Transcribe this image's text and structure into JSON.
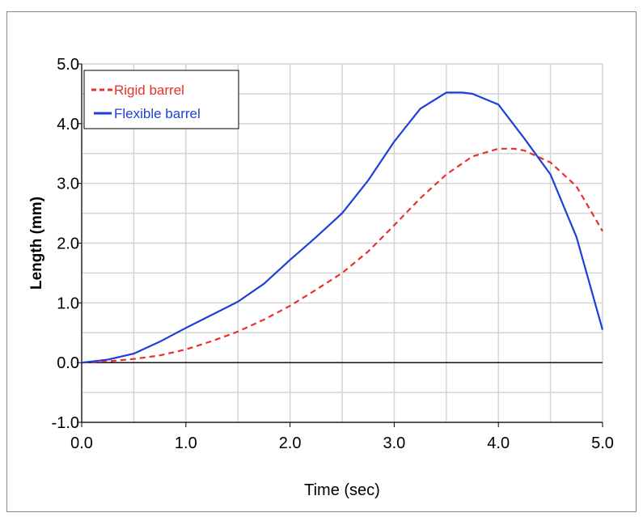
{
  "chart_data": {
    "type": "line",
    "title": "",
    "xlabel": "Time (sec)",
    "ylabel": "Length (mm)",
    "xlim": [
      0.0,
      5.0
    ],
    "ylim": [
      -1.0,
      5.0
    ],
    "x_ticks": [
      "0.0",
      "1.0",
      "2.0",
      "3.0",
      "4.0",
      "5.0"
    ],
    "y_ticks": [
      "-1.0",
      "0.0",
      "1.0",
      "2.0",
      "3.0",
      "4.0",
      "5.0"
    ],
    "grid": true,
    "legend_position": "top-left",
    "series": [
      {
        "name": "Rigid barrel",
        "color": "#e8312a",
        "style": "dashed",
        "x": [
          0.0,
          0.25,
          0.5,
          0.75,
          1.0,
          1.25,
          1.5,
          1.75,
          2.0,
          2.25,
          2.5,
          2.75,
          3.0,
          3.25,
          3.5,
          3.75,
          4.0,
          4.15,
          4.25,
          4.5,
          4.75,
          5.0
        ],
        "y": [
          0.0,
          0.02,
          0.06,
          0.12,
          0.22,
          0.36,
          0.52,
          0.72,
          0.95,
          1.22,
          1.5,
          1.86,
          2.3,
          2.75,
          3.15,
          3.45,
          3.58,
          3.58,
          3.55,
          3.35,
          2.95,
          2.2
        ]
      },
      {
        "name": "Flexible barrel",
        "color": "#1f3fd6",
        "style": "solid",
        "x": [
          0.0,
          0.25,
          0.5,
          0.75,
          1.0,
          1.25,
          1.5,
          1.75,
          2.0,
          2.25,
          2.5,
          2.75,
          3.0,
          3.25,
          3.5,
          3.65,
          3.75,
          4.0,
          4.25,
          4.5,
          4.75,
          5.0
        ],
        "y": [
          0.0,
          0.05,
          0.15,
          0.35,
          0.58,
          0.8,
          1.02,
          1.32,
          1.72,
          2.1,
          2.5,
          3.05,
          3.7,
          4.25,
          4.52,
          4.52,
          4.5,
          4.32,
          3.75,
          3.15,
          2.1,
          0.55
        ]
      }
    ]
  }
}
